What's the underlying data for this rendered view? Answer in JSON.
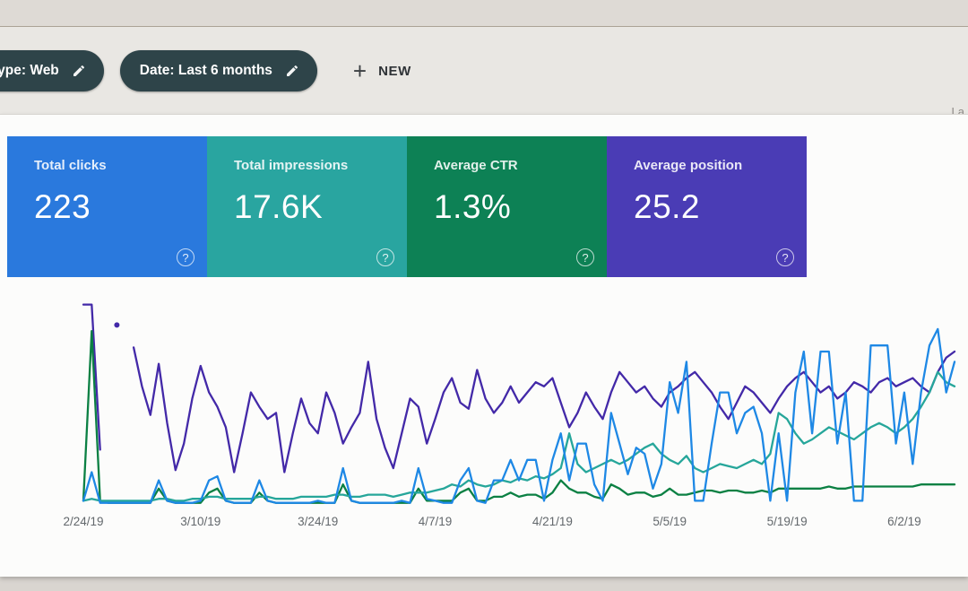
{
  "window": {
    "partial_right_text": "La"
  },
  "toolbar": {
    "filters": [
      {
        "label": "type: Web",
        "icon": "pencil-icon"
      },
      {
        "label": "Date: Last 6 months",
        "icon": "pencil-icon"
      }
    ],
    "new_button": {
      "label": "NEW",
      "icon": "plus-icon"
    }
  },
  "icons": {
    "plus_glyph": "+",
    "help_glyph": "?"
  },
  "cards": [
    {
      "label": "Total clicks",
      "value": "223",
      "color": "#2a79dd",
      "help_icon": "question-circle-icon"
    },
    {
      "label": "Total impressions",
      "value": "17.6K",
      "color": "#29a5a0",
      "help_icon": "question-circle-icon"
    },
    {
      "label": "Average CTR",
      "value": "1.3%",
      "color": "#0d8155",
      "help_icon": "question-circle-icon"
    },
    {
      "label": "Average position",
      "value": "25.2",
      "color": "#4a3cb5",
      "help_icon": "question-circle-icon"
    }
  ],
  "chart_data": {
    "type": "line",
    "title": "",
    "xlabel": "",
    "ylabel": "",
    "y_axis": "unlabeled; values are normalized 0-100 (percent of plot height), each series on its own scale",
    "grid": "none visible",
    "legend_position": "none visible (series colors match metric cards)",
    "n_points": 105,
    "x_tick_labels": [
      "2/24/19",
      "3/10/19",
      "3/24/19",
      "4/7/19",
      "4/21/19",
      "5/5/19",
      "5/19/19",
      "6/2/19"
    ],
    "tick_indices": [
      0,
      14,
      28,
      42,
      56,
      70,
      84,
      98
    ],
    "series": [
      {
        "name": "Average position",
        "color": "#4329a8",
        "note": "starts clipped at top, has a data gap with one isolated dot near start",
        "values": [
          98,
          98,
          27,
          null,
          88,
          null,
          77,
          58,
          44,
          69,
          40,
          17,
          30,
          52,
          68,
          55,
          48,
          38,
          16,
          35,
          55,
          48,
          42,
          45,
          16,
          35,
          52,
          40,
          35,
          55,
          45,
          30,
          38,
          45,
          70,
          42,
          28,
          18,
          35,
          52,
          48,
          30,
          42,
          55,
          62,
          50,
          47,
          66,
          52,
          45,
          50,
          58,
          50,
          55,
          60,
          58,
          62,
          50,
          38,
          45,
          55,
          48,
          42,
          55,
          65,
          60,
          55,
          58,
          52,
          48,
          55,
          58,
          62,
          65,
          60,
          55,
          48,
          42,
          50,
          58,
          55,
          50,
          45,
          52,
          58,
          62,
          65,
          60,
          55,
          58,
          52,
          55,
          60,
          58,
          55,
          60,
          62,
          58,
          60,
          62,
          58,
          55,
          65,
          72,
          75
        ]
      },
      {
        "name": "Average CTR",
        "color": "#0b8043",
        "values": [
          2,
          85,
          2,
          1,
          1,
          1,
          1,
          1,
          1,
          8,
          2,
          1,
          1,
          1,
          1,
          6,
          8,
          2,
          1,
          1,
          1,
          6,
          2,
          1,
          1,
          1,
          1,
          1,
          1,
          1,
          1,
          10,
          2,
          1,
          1,
          1,
          1,
          1,
          1,
          1,
          8,
          2,
          2,
          2,
          2,
          6,
          8,
          2,
          2,
          4,
          4,
          6,
          4,
          5,
          5,
          3,
          6,
          12,
          8,
          6,
          6,
          4,
          3,
          10,
          8,
          5,
          6,
          6,
          4,
          5,
          8,
          5,
          5,
          6,
          7,
          7,
          6,
          7,
          7,
          6,
          6,
          7,
          6,
          8,
          8,
          8,
          8,
          8,
          8,
          9,
          8,
          8,
          9,
          9,
          9,
          9,
          9,
          9,
          9,
          9,
          10,
          10,
          10,
          10,
          10
        ]
      },
      {
        "name": "Total impressions",
        "color": "#26a69a",
        "values": [
          2,
          3,
          2,
          2,
          2,
          2,
          2,
          2,
          2,
          3,
          3,
          2,
          2,
          3,
          3,
          4,
          4,
          3,
          3,
          3,
          3,
          4,
          4,
          3,
          3,
          3,
          4,
          4,
          4,
          4,
          5,
          5,
          4,
          4,
          5,
          5,
          5,
          4,
          5,
          6,
          6,
          6,
          7,
          8,
          10,
          9,
          12,
          10,
          9,
          10,
          12,
          11,
          13,
          12,
          14,
          13,
          15,
          18,
          35,
          20,
          16,
          18,
          20,
          22,
          20,
          22,
          25,
          28,
          30,
          25,
          22,
          20,
          24,
          18,
          16,
          18,
          20,
          19,
          18,
          20,
          22,
          20,
          25,
          45,
          42,
          35,
          30,
          32,
          35,
          38,
          36,
          34,
          32,
          35,
          38,
          40,
          38,
          35,
          38,
          42,
          48,
          55,
          65,
          60,
          58
        ]
      },
      {
        "name": "Total clicks",
        "color": "#1e88e5",
        "values": [
          2,
          16,
          1,
          1,
          1,
          1,
          1,
          1,
          1,
          12,
          2,
          1,
          1,
          1,
          2,
          12,
          14,
          2,
          1,
          1,
          1,
          12,
          2,
          1,
          1,
          1,
          1,
          1,
          2,
          1,
          1,
          18,
          2,
          1,
          1,
          1,
          1,
          1,
          2,
          1,
          18,
          3,
          2,
          1,
          1,
          12,
          18,
          2,
          1,
          12,
          12,
          22,
          12,
          22,
          22,
          2,
          22,
          35,
          12,
          30,
          30,
          10,
          2,
          45,
          30,
          15,
          28,
          25,
          8,
          20,
          60,
          45,
          70,
          2,
          2,
          30,
          55,
          55,
          35,
          45,
          48,
          35,
          2,
          35,
          2,
          55,
          75,
          35,
          75,
          75,
          30,
          55,
          2,
          2,
          78,
          78,
          78,
          30,
          55,
          20,
          55,
          78,
          86,
          55,
          70
        ]
      }
    ]
  }
}
